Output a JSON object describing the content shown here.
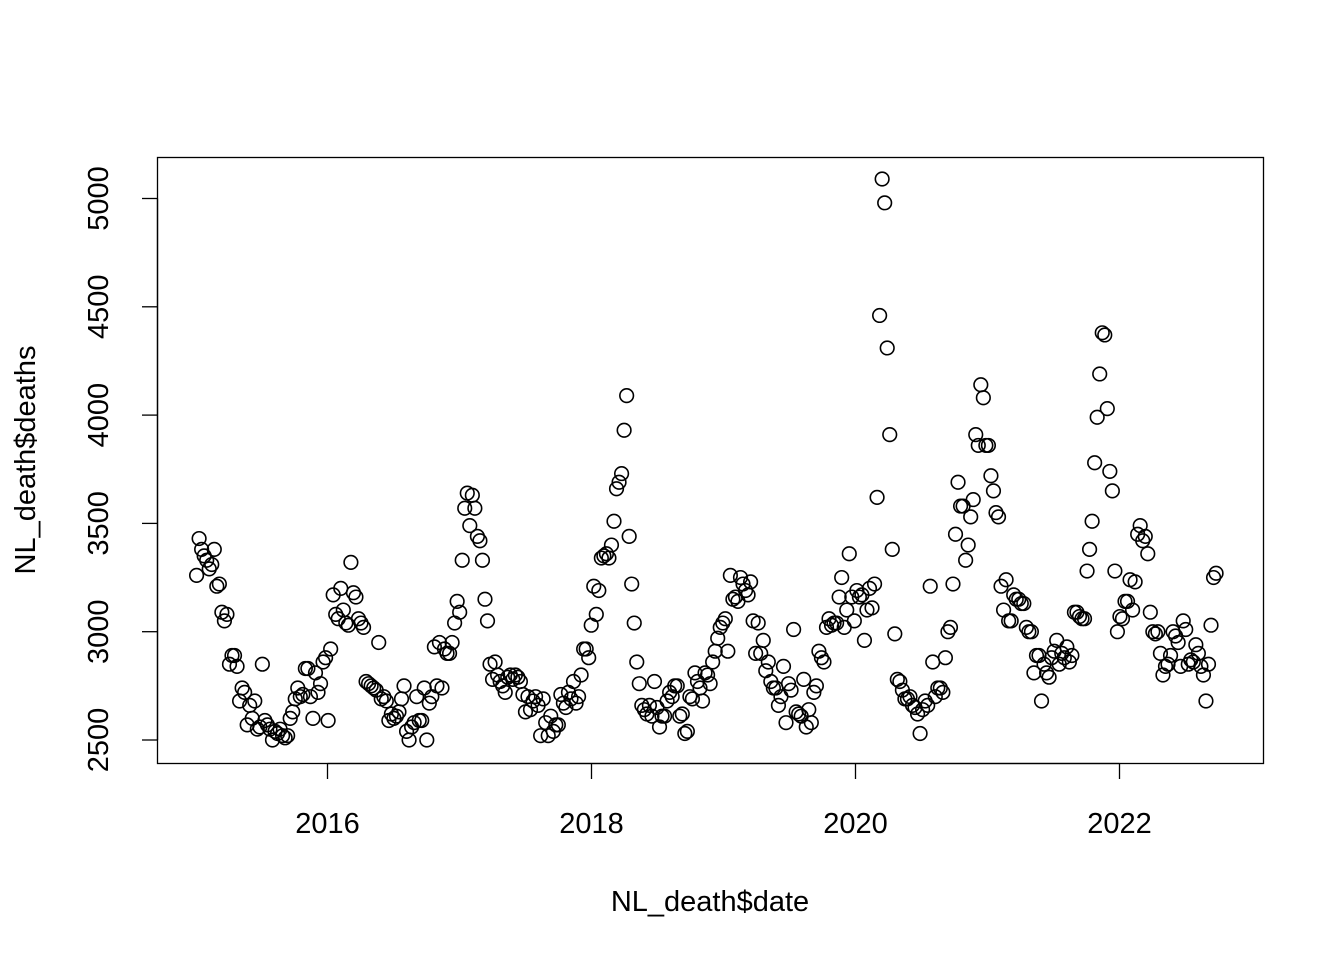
{
  "chart_data": {
    "type": "scatter",
    "title": "",
    "xlabel": "NL_death$date",
    "ylabel": "NL_death$deaths",
    "x_ticks": [
      "2016",
      "2018",
      "2020",
      "2022"
    ],
    "y_ticks": [
      2500,
      3000,
      3500,
      4000,
      4500,
      5000
    ],
    "xlim": [
      "2014-11-20",
      "2023-02-10"
    ],
    "ylim": [
      2400,
      5200
    ],
    "grid": false,
    "marker": "open-circle",
    "point_color": "#000000",
    "series": [
      {
        "values": [
          3260,
          3430,
          3380,
          3350,
          3330,
          3290,
          3310,
          3380,
          3210,
          3220,
          3090,
          3050,
          3080,
          2850,
          2890,
          2890,
          2840,
          2680,
          2740,
          2720,
          2570,
          2660,
          2600,
          2680,
          2550,
          2560,
          2850,
          2590,
          2570,
          2550,
          2500,
          2540,
          2530,
          2550,
          2520,
          2510,
          2520,
          2600,
          2630,
          2690,
          2740,
          2700,
          2710,
          2830,
          2830,
          2700,
          2600,
          2810,
          2720,
          2760,
          2860,
          2880,
          2590,
          2920,
          3170,
          3080,
          3060,
          3200,
          3100,
          3040,
          3030,
          3320,
          3180,
          3160,
          3060,
          3040,
          3020,
          2770,
          2760,
          2750,
          2740,
          2730,
          2950,
          2690,
          2700,
          2680,
          2590,
          2620,
          2600,
          2610,
          2630,
          2690,
          2750,
          2540,
          2500,
          2560,
          2580,
          2700,
          2590,
          2590,
          2740,
          2500,
          2670,
          2700,
          2930,
          2750,
          2950,
          2740,
          2920,
          2900,
          2900,
          2950,
          3040,
          3140,
          3090,
          3330,
          3570,
          3640,
          3490,
          3630,
          3570,
          3440,
          3420,
          3330,
          3150,
          3050,
          2850,
          2780,
          2860,
          2800,
          2770,
          2750,
          2720,
          2790,
          2800,
          2780,
          2800,
          2790,
          2770,
          2710,
          2630,
          2700,
          2640,
          2680,
          2700,
          2660,
          2520,
          2690,
          2580,
          2520,
          2610,
          2540,
          2570,
          2570,
          2710,
          2670,
          2650,
          2720,
          2690,
          2770,
          2670,
          2700,
          2800,
          2920,
          2920,
          2880,
          3030,
          3210,
          3080,
          3190,
          3340,
          3350,
          3360,
          3340,
          3400,
          3510,
          3660,
          3690,
          3730,
          3930,
          4090,
          3440,
          3220,
          3040,
          2860,
          2760,
          2660,
          2640,
          2620,
          2660,
          2610,
          2770,
          2650,
          2560,
          2610,
          2610,
          2680,
          2720,
          2700,
          2750,
          2750,
          2610,
          2620,
          2530,
          2540,
          2700,
          2690,
          2810,
          2770,
          2740,
          2680,
          2810,
          2800,
          2760,
          2860,
          2910,
          2970,
          3020,
          3040,
          3060,
          2910,
          3260,
          3150,
          3160,
          3140,
          3250,
          3220,
          3190,
          3170,
          3230,
          3050,
          2900,
          3040,
          2900,
          2960,
          2820,
          2860,
          2770,
          2740,
          2740,
          2660,
          2700,
          2840,
          2580,
          2760,
          2730,
          3010,
          2630,
          2620,
          2610,
          2780,
          2560,
          2640,
          2580,
          2720,
          2750,
          2910,
          2880,
          2860,
          3020,
          3060,
          3030,
          3040,
          3040,
          3160,
          3250,
          3020,
          3100,
          3360,
          3160,
          3050,
          3190,
          3160,
          3170,
          2960,
          3100,
          3200,
          3110,
          3220,
          3620,
          4460,
          5090,
          4980,
          4310,
          3910,
          3380,
          2990,
          2780,
          2770,
          2730,
          2690,
          2690,
          2700,
          2660,
          2650,
          2620,
          2530,
          2640,
          2680,
          2660,
          3210,
          2860,
          2700,
          2740,
          2740,
          2720,
          2880,
          3000,
          3020,
          3220,
          3450,
          3690,
          3580,
          3580,
          3330,
          3400,
          3530,
          3610,
          3910,
          3860,
          4140,
          4080,
          3860,
          3860,
          3720,
          3650,
          3550,
          3530,
          3210,
          3100,
          3240,
          3050,
          3050,
          3170,
          3150,
          3150,
          3130,
          3130,
          3020,
          3000,
          3000,
          2810,
          2890,
          2890,
          2680,
          2850,
          2810,
          2790,
          2880,
          2910,
          2960,
          2850,
          2900,
          2880,
          2930,
          2860,
          2890,
          3090,
          3090,
          3070,
          3060,
          3060,
          3280,
          3380,
          3510,
          3780,
          3990,
          4190,
          4380,
          4370,
          4030,
          3740,
          3650,
          3280,
          3000,
          3070,
          3060,
          3140,
          3140,
          3240,
          3100,
          3230,
          3450,
          3490,
          3420,
          3440,
          3360,
          3090,
          3000,
          2990,
          3000,
          2900,
          2800,
          2840,
          2850,
          2890,
          3000,
          2980,
          2950,
          2840,
          3050,
          3010,
          2850,
          2870,
          2860,
          2940,
          2900,
          2840,
          2800,
          2680,
          2850,
          3030,
          3250,
          3270
        ]
      }
    ]
  }
}
